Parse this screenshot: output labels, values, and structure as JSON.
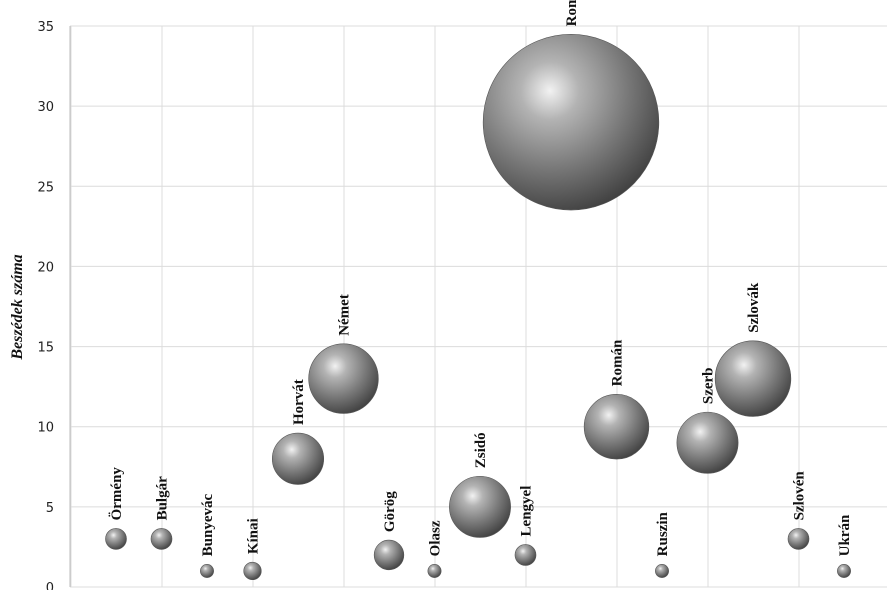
{
  "chart_data": {
    "type": "bubble",
    "ylabel": "Beszédek száma",
    "xlabel": "",
    "ylim": [
      0,
      35
    ],
    "y_ticks": [
      0,
      5,
      10,
      15,
      20,
      25,
      30,
      35
    ],
    "grid": true,
    "bubble_color": "#8c8c8c",
    "points": [
      {
        "label": "Örmény",
        "x": 1,
        "y": 3,
        "size": 1
      },
      {
        "label": "Bulgár",
        "x": 2,
        "y": 3,
        "size": 1
      },
      {
        "label": "Bunyevác",
        "x": 3,
        "y": 1,
        "size": 0.4
      },
      {
        "label": "Kínai",
        "x": 4,
        "y": 1,
        "size": 0.7
      },
      {
        "label": "Horvát",
        "x": 5,
        "y": 8,
        "size": 6
      },
      {
        "label": "Német",
        "x": 6,
        "y": 13,
        "size": 11
      },
      {
        "label": "Görög",
        "x": 7,
        "y": 2,
        "size": 2
      },
      {
        "label": "Olasz",
        "x": 8,
        "y": 1,
        "size": 0.4
      },
      {
        "label": "Zsidó",
        "x": 9,
        "y": 5,
        "size": 8.5
      },
      {
        "label": "Lengyel",
        "x": 10,
        "y": 2,
        "size": 1
      },
      {
        "label": "Roma",
        "x": 11,
        "y": 29,
        "size": 70
      },
      {
        "label": "Román",
        "x": 12,
        "y": 10,
        "size": 9.5
      },
      {
        "label": "Ruszin",
        "x": 13,
        "y": 1,
        "size": 0.4
      },
      {
        "label": "Szerb",
        "x": 14,
        "y": 9,
        "size": 8.5
      },
      {
        "label": "Szlovák",
        "x": 15,
        "y": 13,
        "size": 13
      },
      {
        "label": "Szlovén",
        "x": 16,
        "y": 3,
        "size": 1
      },
      {
        "label": "Ukrán",
        "x": 17,
        "y": 1,
        "size": 0.4
      }
    ]
  }
}
